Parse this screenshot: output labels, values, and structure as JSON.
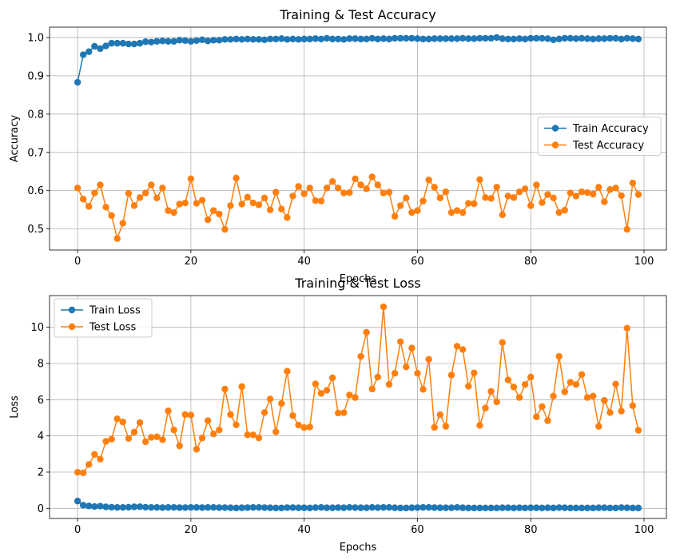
{
  "chart_data": [
    {
      "type": "line",
      "title": "Training & Test Accuracy",
      "xlabel": "Epochs",
      "ylabel": "Accuracy",
      "xlim": [
        -4.95,
        103.95
      ],
      "ylim": [
        0.445,
        1.027
      ],
      "xticks": [
        0,
        20,
        40,
        60,
        80,
        100
      ],
      "xtick_labels": [
        "0",
        "20",
        "40",
        "60",
        "80",
        "100"
      ],
      "yticks": [
        0.5,
        0.6,
        0.7,
        0.8,
        0.9,
        1.0
      ],
      "ytick_labels": [
        "0.5",
        "0.6",
        "0.7",
        "0.8",
        "0.9",
        "1.0"
      ],
      "grid": true,
      "legend_position": "center-right",
      "series": [
        {
          "name": "Train Accuracy",
          "color": "#1f77b4",
          "values": [
            0.883,
            0.955,
            0.963,
            0.977,
            0.971,
            0.978,
            0.985,
            0.985,
            0.985,
            0.983,
            0.983,
            0.985,
            0.989,
            0.988,
            0.99,
            0.991,
            0.99,
            0.99,
            0.993,
            0.992,
            0.99,
            0.992,
            0.994,
            0.991,
            0.993,
            0.993,
            0.995,
            0.995,
            0.996,
            0.995,
            0.996,
            0.995,
            0.995,
            0.994,
            0.996,
            0.996,
            0.997,
            0.995,
            0.996,
            0.995,
            0.996,
            0.996,
            0.997,
            0.996,
            0.998,
            0.996,
            0.996,
            0.995,
            0.997,
            0.997,
            0.996,
            0.996,
            0.998,
            0.996,
            0.997,
            0.996,
            0.998,
            0.998,
            0.998,
            0.998,
            0.997,
            0.996,
            0.996,
            0.997,
            0.997,
            0.997,
            0.997,
            0.997,
            0.998,
            0.997,
            0.997,
            0.998,
            0.998,
            0.998,
            1.0,
            0.997,
            0.996,
            0.996,
            0.997,
            0.996,
            0.998,
            0.998,
            0.998,
            0.997,
            0.994,
            0.996,
            0.998,
            0.998,
            0.997,
            0.998,
            0.997,
            0.996,
            0.997,
            0.997,
            0.998,
            0.998,
            0.996,
            0.998,
            0.997,
            0.996
          ]
        },
        {
          "name": "Test Accuracy",
          "color": "#ff7f0e",
          "values": [
            0.607,
            0.578,
            0.559,
            0.594,
            0.615,
            0.557,
            0.535,
            0.475,
            0.515,
            0.593,
            0.561,
            0.582,
            0.594,
            0.615,
            0.581,
            0.607,
            0.548,
            0.543,
            0.565,
            0.568,
            0.631,
            0.567,
            0.575,
            0.524,
            0.548,
            0.539,
            0.499,
            0.561,
            0.633,
            0.565,
            0.583,
            0.568,
            0.563,
            0.581,
            0.55,
            0.596,
            0.552,
            0.53,
            0.586,
            0.611,
            0.592,
            0.607,
            0.574,
            0.573,
            0.607,
            0.624,
            0.607,
            0.594,
            0.595,
            0.631,
            0.615,
            0.605,
            0.636,
            0.615,
            0.594,
            0.596,
            0.533,
            0.561,
            0.581,
            0.543,
            0.548,
            0.573,
            0.628,
            0.609,
            0.581,
            0.597,
            0.543,
            0.548,
            0.543,
            0.567,
            0.566,
            0.629,
            0.582,
            0.58,
            0.609,
            0.537,
            0.586,
            0.582,
            0.597,
            0.605,
            0.561,
            0.615,
            0.569,
            0.59,
            0.581,
            0.543,
            0.549,
            0.594,
            0.586,
            0.597,
            0.595,
            0.591,
            0.609,
            0.571,
            0.603,
            0.607,
            0.587,
            0.499,
            0.62,
            0.59
          ]
        }
      ]
    },
    {
      "type": "line",
      "title": "Training & Test Loss",
      "xlabel": "Epochs",
      "ylabel": "Loss",
      "xlim": [
        -4.95,
        103.95
      ],
      "ylim": [
        -0.56,
        11.75
      ],
      "xticks": [
        0,
        20,
        40,
        60,
        80,
        100
      ],
      "xtick_labels": [
        "0",
        "20",
        "40",
        "60",
        "80",
        "100"
      ],
      "yticks": [
        0,
        2,
        4,
        6,
        8,
        10
      ],
      "ytick_labels": [
        "0",
        "2",
        "4",
        "6",
        "8",
        "10"
      ],
      "grid": true,
      "legend_position": "upper-left",
      "series": [
        {
          "name": "Train Loss",
          "color": "#1f77b4",
          "values": [
            0.4,
            0.17,
            0.13,
            0.1,
            0.12,
            0.08,
            0.06,
            0.05,
            0.05,
            0.06,
            0.08,
            0.09,
            0.06,
            0.05,
            0.05,
            0.04,
            0.05,
            0.05,
            0.04,
            0.04,
            0.05,
            0.05,
            0.04,
            0.05,
            0.05,
            0.04,
            0.04,
            0.03,
            0.02,
            0.03,
            0.04,
            0.05,
            0.05,
            0.04,
            0.03,
            0.02,
            0.02,
            0.04,
            0.04,
            0.03,
            0.03,
            0.02,
            0.04,
            0.05,
            0.03,
            0.03,
            0.04,
            0.03,
            0.05,
            0.04,
            0.03,
            0.03,
            0.05,
            0.04,
            0.05,
            0.05,
            0.03,
            0.02,
            0.02,
            0.03,
            0.04,
            0.05,
            0.05,
            0.04,
            0.03,
            0.03,
            0.03,
            0.05,
            0.03,
            0.02,
            0.02,
            0.02,
            0.02,
            0.02,
            0.02,
            0.03,
            0.03,
            0.02,
            0.03,
            0.02,
            0.03,
            0.03,
            0.02,
            0.03,
            0.02,
            0.04,
            0.03,
            0.02,
            0.02,
            0.02,
            0.02,
            0.02,
            0.03,
            0.03,
            0.02,
            0.02,
            0.04,
            0.03,
            0.02,
            0.02
          ]
        },
        {
          "name": "Test Loss",
          "color": "#ff7f0e",
          "values": [
            1.99,
            1.96,
            2.42,
            2.98,
            2.72,
            3.7,
            3.82,
            4.94,
            4.77,
            3.86,
            4.21,
            4.73,
            3.68,
            3.92,
            3.95,
            3.79,
            5.38,
            4.33,
            3.45,
            5.18,
            5.15,
            3.26,
            3.89,
            4.84,
            4.11,
            4.33,
            6.59,
            5.18,
            4.61,
            6.72,
            4.06,
            4.06,
            3.89,
            5.29,
            6.04,
            4.22,
            5.79,
            7.57,
            5.12,
            4.6,
            4.46,
            4.49,
            6.87,
            6.35,
            6.52,
            7.21,
            5.26,
            5.28,
            6.26,
            6.12,
            8.39,
            9.72,
            6.59,
            7.25,
            11.13,
            6.84,
            7.46,
            9.2,
            7.81,
            8.85,
            7.46,
            6.57,
            8.23,
            4.47,
            5.17,
            4.53,
            7.36,
            8.95,
            8.77,
            6.74,
            7.48,
            4.58,
            5.54,
            6.46,
            5.88,
            9.16,
            7.09,
            6.7,
            6.12,
            6.84,
            7.25,
            5.05,
            5.62,
            4.84,
            6.2,
            8.39,
            6.43,
            6.96,
            6.84,
            7.39,
            6.12,
            6.2,
            4.53,
            5.96,
            5.29,
            6.86,
            5.37,
            9.95,
            5.67,
            4.31
          ]
        }
      ]
    }
  ]
}
